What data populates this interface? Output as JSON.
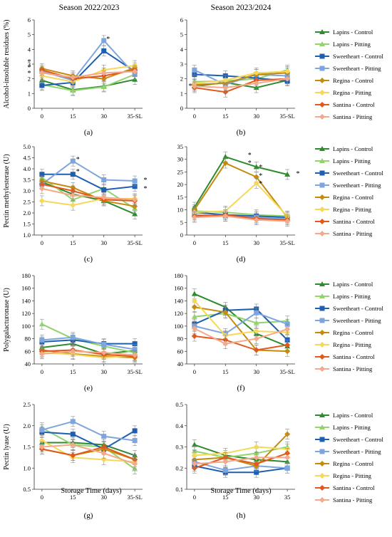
{
  "figure": {
    "season_titles": [
      "Season 2022/2023",
      "Season 2023/2024"
    ],
    "xlabel": "Storage Time (days)",
    "colors": {
      "Lapins - Control": "#2e8b2e",
      "Lapins - Pitting": "#92d36e",
      "Sweetheart - Control": "#1f5fb0",
      "Sweetheart - Pitting": "#7ea6de",
      "Regina - Control": "#c58a0e",
      "Regina - Pitting": "#f5d85a",
      "Santina - Control": "#e2571b",
      "Santina - Pitting": "#f4a98a"
    }
  },
  "chart_data": [
    {
      "type": "line",
      "panel": "(a)",
      "ylabel": "Alcohol-insoluble residues (%)",
      "categories": [
        "0",
        "15",
        "30",
        "35-SL"
      ],
      "ylim": [
        0,
        6
      ],
      "yticks": [
        0,
        1,
        2,
        3,
        4,
        5,
        6
      ],
      "ytick_labels": [
        "0",
        "1",
        "2",
        "3",
        "4",
        "5",
        "6"
      ],
      "grid": false,
      "legend": "right",
      "series": [
        {
          "name": "Lapins - Control",
          "values": [
            1.9,
            1.25,
            1.5,
            1.95
          ]
        },
        {
          "name": "Lapins - Pitting",
          "values": [
            1.6,
            1.2,
            1.45,
            2.3
          ]
        },
        {
          "name": "Sweetheart - Control",
          "values": [
            1.55,
            1.75,
            3.9,
            2.5
          ]
        },
        {
          "name": "Sweetheart - Pitting",
          "values": [
            2.5,
            1.9,
            4.6,
            2.3
          ]
        },
        {
          "name": "Regina - Control",
          "values": [
            2.7,
            2.2,
            2.0,
            2.75
          ]
        },
        {
          "name": "Regina - Pitting",
          "values": [
            2.2,
            1.8,
            2.6,
            2.9
          ]
        },
        {
          "name": "Santina - Control",
          "values": [
            2.6,
            2.0,
            2.2,
            2.6
          ]
        },
        {
          "name": "Santina - Pitting",
          "values": [
            2.4,
            2.1,
            2.4,
            2.5
          ]
        }
      ],
      "annotations": [
        "*",
        "*",
        "*",
        "*"
      ]
    },
    {
      "type": "line",
      "panel": "(b)",
      "ylabel": "",
      "categories": [
        "0",
        "15",
        "30",
        "35-SL"
      ],
      "ylim": [
        0,
        6
      ],
      "yticks": [
        0,
        1,
        2,
        3,
        4,
        5,
        6
      ],
      "ytick_labels": [
        "0",
        "1",
        "2",
        "3",
        "4",
        "5",
        "6"
      ],
      "grid": false,
      "legend": "right",
      "series": [
        {
          "name": "Lapins - Control",
          "values": [
            1.5,
            1.75,
            1.4,
            1.9
          ]
        },
        {
          "name": "Lapins - Pitting",
          "values": [
            1.8,
            1.85,
            2.0,
            2.6
          ]
        },
        {
          "name": "Sweetheart - Control",
          "values": [
            2.3,
            2.2,
            2.05,
            1.85
          ]
        },
        {
          "name": "Sweetheart - Pitting",
          "values": [
            2.6,
            1.6,
            2.3,
            2.2
          ]
        },
        {
          "name": "Regina - Control",
          "values": [
            1.6,
            1.7,
            2.3,
            2.4
          ]
        },
        {
          "name": "Regina - Pitting",
          "values": [
            1.7,
            1.9,
            2.4,
            2.5
          ]
        },
        {
          "name": "Santina - Control",
          "values": [
            1.4,
            1.1,
            1.9,
            2.0
          ]
        },
        {
          "name": "Santina - Pitting",
          "values": [
            1.5,
            1.4,
            1.7,
            2.0
          ]
        }
      ],
      "annotations": [
        "*"
      ]
    },
    {
      "type": "line",
      "panel": "(c)",
      "ylabel": "Pectin methylesterase (U)",
      "categories": [
        "0",
        "15",
        "30",
        "35-SL"
      ],
      "ylim": [
        1.0,
        5.0
      ],
      "yticks": [
        1.0,
        1.5,
        2.0,
        2.5,
        3.0,
        3.5,
        4.0,
        4.5,
        5.0
      ],
      "ytick_labels": [
        "1.0",
        "1.5",
        "2.0",
        "2.5",
        "3.0",
        "3.5",
        "4.0",
        "4.5",
        "5.0"
      ],
      "grid": false,
      "legend": "right",
      "series": [
        {
          "name": "Lapins - Control",
          "values": [
            3.4,
            2.85,
            2.55,
            1.95
          ]
        },
        {
          "name": "Lapins - Pitting",
          "values": [
            3.6,
            2.6,
            3.1,
            2.2
          ]
        },
        {
          "name": "Sweetheart - Control",
          "values": [
            3.75,
            3.75,
            3.05,
            3.2
          ]
        },
        {
          "name": "Sweetheart - Pitting",
          "values": [
            3.3,
            4.35,
            3.5,
            3.45
          ]
        },
        {
          "name": "Regina - Control",
          "values": [
            3.45,
            3.15,
            2.55,
            2.3
          ]
        },
        {
          "name": "Regina - Pitting",
          "values": [
            2.55,
            2.35,
            2.65,
            2.65
          ]
        },
        {
          "name": "Santina - Control",
          "values": [
            3.3,
            3.0,
            2.6,
            2.55
          ]
        },
        {
          "name": "Santina - Pitting",
          "values": [
            3.1,
            2.8,
            2.7,
            2.6
          ]
        }
      ],
      "annotations": [
        "*",
        "*",
        "*",
        "*"
      ]
    },
    {
      "type": "line",
      "panel": "(d)",
      "ylabel": "",
      "categories": [
        "0",
        "15",
        "30",
        "35-SL"
      ],
      "ylim": [
        0,
        35
      ],
      "yticks": [
        0,
        5,
        10,
        15,
        20,
        25,
        30,
        35
      ],
      "ytick_labels": [
        "0",
        "5",
        "10",
        "15",
        "20",
        "25",
        "30",
        "35"
      ],
      "grid": false,
      "legend": "right",
      "series": [
        {
          "name": "Lapins - Control",
          "values": [
            11.0,
            31.0,
            27.0,
            24.0
          ]
        },
        {
          "name": "Lapins - Pitting",
          "values": [
            9.5,
            9.0,
            8.0,
            7.5
          ]
        },
        {
          "name": "Sweetheart - Control",
          "values": [
            9.0,
            8.0,
            7.5,
            7.0
          ]
        },
        {
          "name": "Sweetheart - Pitting",
          "values": [
            8.0,
            7.5,
            7.0,
            6.5
          ]
        },
        {
          "name": "Regina - Control",
          "values": [
            10.0,
            28.5,
            23.0,
            7.0
          ]
        },
        {
          "name": "Regina - Pitting",
          "values": [
            9.0,
            9.5,
            20.5,
            7.5
          ]
        },
        {
          "name": "Santina - Control",
          "values": [
            7.5,
            8.0,
            6.5,
            6.0
          ]
        },
        {
          "name": "Santina - Pitting",
          "values": [
            7.0,
            7.5,
            6.0,
            5.5
          ]
        }
      ],
      "annotations": [
        "*",
        "*",
        "*",
        "*",
        "*",
        "*"
      ]
    },
    {
      "type": "line",
      "panel": "(e)",
      "ylabel": "Polygalacturonase (U)",
      "categories": [
        "0",
        "15",
        "30",
        "35-SL"
      ],
      "ylim": [
        40,
        180
      ],
      "yticks": [
        40,
        60,
        80,
        100,
        120,
        140,
        160,
        180
      ],
      "ytick_labels": [
        "40",
        "60",
        "80",
        "100",
        "120",
        "140",
        "160",
        "180"
      ],
      "grid": false,
      "legend": "right",
      "series": [
        {
          "name": "Lapins - Control",
          "values": [
            66,
            72,
            56,
            61
          ]
        },
        {
          "name": "Lapins - Pitting",
          "values": [
            103,
            80,
            68,
            58
          ]
        },
        {
          "name": "Sweetheart - Control",
          "values": [
            75,
            78,
            72,
            72
          ]
        },
        {
          "name": "Sweetheart - Pitting",
          "values": [
            78,
            82,
            71,
            63
          ]
        },
        {
          "name": "Regina - Control",
          "values": [
            62,
            56,
            52,
            50
          ]
        },
        {
          "name": "Regina - Pitting",
          "values": [
            58,
            55,
            50,
            53
          ]
        },
        {
          "name": "Santina - Control",
          "values": [
            60,
            62,
            55,
            52
          ]
        },
        {
          "name": "Santina - Pitting",
          "values": [
            56,
            60,
            58,
            54
          ]
        }
      ]
    },
    {
      "type": "line",
      "panel": "(f)",
      "ylabel": "",
      "categories": [
        "0",
        "15",
        "30",
        "35-SL"
      ],
      "ylim": [
        40,
        180
      ],
      "yticks": [
        40,
        60,
        80,
        100,
        120,
        140,
        160,
        180
      ],
      "ytick_labels": [
        "40",
        "60",
        "80",
        "100",
        "120",
        "140",
        "160",
        "180"
      ],
      "grid": false,
      "legend": "right",
      "series": [
        {
          "name": "Lapins - Control",
          "values": [
            151,
            130,
            88,
            68
          ]
        },
        {
          "name": "Lapins - Pitting",
          "values": [
            115,
            120,
            105,
            108
          ]
        },
        {
          "name": "Sweetheart - Control",
          "values": [
            103,
            125,
            127,
            78
          ]
        },
        {
          "name": "Sweetheart - Pitting",
          "values": [
            100,
            88,
            121,
            103
          ]
        },
        {
          "name": "Regina - Control",
          "values": [
            130,
            122,
            62,
            60
          ]
        },
        {
          "name": "Regina - Pitting",
          "values": [
            140,
            85,
            92,
            90
          ]
        },
        {
          "name": "Santina - Control",
          "values": [
            84,
            78,
            62,
            70
          ]
        },
        {
          "name": "Santina - Pitting",
          "values": [
            96,
            72,
            80,
            95
          ]
        }
      ]
    },
    {
      "type": "line",
      "panel": "(g)",
      "ylabel": "Pectin lyase (U)",
      "categories": [
        "0",
        "15",
        "30",
        "35-SL"
      ],
      "ylim": [
        0.5,
        2.5
      ],
      "yticks": [
        0.5,
        1.0,
        1.5,
        2.0,
        2.5
      ],
      "ytick_labels": [
        "0.5",
        "1.0",
        "1.5",
        "2.0",
        "2.5"
      ],
      "grid": false,
      "legend": "right",
      "series": [
        {
          "name": "Lapins - Control",
          "values": [
            1.6,
            1.6,
            1.55,
            1.3
          ]
        },
        {
          "name": "Lapins - Pitting",
          "values": [
            1.95,
            1.55,
            1.5,
            0.98
          ]
        },
        {
          "name": "Sweetheart - Control",
          "values": [
            1.85,
            1.8,
            1.45,
            1.88
          ]
        },
        {
          "name": "Sweetheart - Pitting",
          "values": [
            1.9,
            2.1,
            1.75,
            1.65
          ]
        },
        {
          "name": "Regina - Control",
          "values": [
            1.45,
            1.3,
            1.45,
            1.2
          ]
        },
        {
          "name": "Regina - Pitting",
          "values": [
            1.65,
            1.25,
            1.2,
            1.15
          ]
        },
        {
          "name": "Santina - Control",
          "values": [
            1.45,
            1.3,
            1.5,
            1.2
          ]
        },
        {
          "name": "Santina - Pitting",
          "values": [
            1.5,
            1.55,
            1.35,
            1.1
          ]
        }
      ]
    },
    {
      "type": "line",
      "panel": "(h)",
      "ylabel": "",
      "categories": [
        "0",
        "15",
        "30",
        "35"
      ],
      "ylim": [
        0.1,
        0.5
      ],
      "yticks": [
        0.1,
        0.2,
        0.3,
        0.4,
        0.5
      ],
      "ytick_labels": [
        "0.1",
        "0.2",
        "0.3",
        "0.4",
        "0.5"
      ],
      "grid": false,
      "legend": "right",
      "series": [
        {
          "name": "Lapins - Control",
          "values": [
            0.31,
            0.26,
            0.24,
            0.23
          ]
        },
        {
          "name": "Lapins - Pitting",
          "values": [
            0.28,
            0.25,
            0.27,
            0.3
          ]
        },
        {
          "name": "Sweetheart - Control",
          "values": [
            0.21,
            0.18,
            0.18,
            0.2
          ]
        },
        {
          "name": "Sweetheart - Pitting",
          "values": [
            0.23,
            0.19,
            0.21,
            0.2
          ]
        },
        {
          "name": "Regina - Control",
          "values": [
            0.24,
            0.25,
            0.21,
            0.36
          ]
        },
        {
          "name": "Regina - Pitting",
          "values": [
            0.26,
            0.27,
            0.3,
            0.29
          ]
        },
        {
          "name": "Santina - Control",
          "values": [
            0.2,
            0.25,
            0.22,
            0.27
          ]
        },
        {
          "name": "Santina - Pitting",
          "values": [
            0.22,
            0.23,
            0.25,
            0.25
          ]
        }
      ]
    }
  ]
}
